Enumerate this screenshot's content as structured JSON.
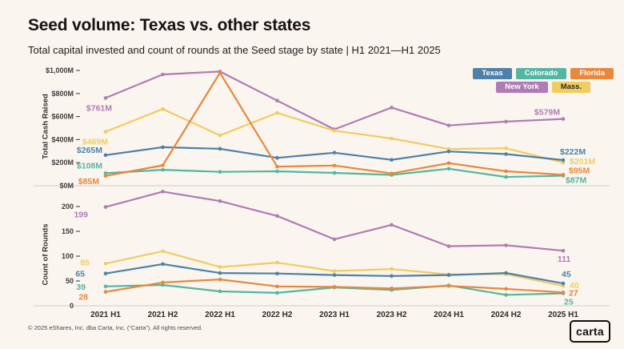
{
  "header": {
    "title": "Seed volume: Texas vs. other states",
    "subtitle": "Total capital invested and count of rounds at the Seed stage by state | H1 2021—H1 2025"
  },
  "legend": {
    "rows": [
      [
        {
          "label": "Texas",
          "color": "#4E80A8",
          "text_color": "#FFFFFF"
        },
        {
          "label": "Colorado",
          "color": "#53B6A2",
          "text_color": "#FFFFFF"
        },
        {
          "label": "Florida",
          "color": "#E8883C",
          "text_color": "#FFFFFF"
        }
      ],
      [
        {
          "label": "New York",
          "color": "#B07CB4",
          "text_color": "#FFFFFF"
        },
        {
          "label": "Mass.",
          "color": "#F1CD5F",
          "text_color": "#2A2A2A"
        }
      ]
    ]
  },
  "chart_data": [
    {
      "type": "line",
      "ylabel": "Total Cash Raised",
      "x": [
        "2021 H1",
        "2021 H2",
        "2022 H1",
        "2022 H2",
        "2023 H1",
        "2023 H2",
        "2024 H1",
        "2024 H2",
        "2025 H1"
      ],
      "ylim": [
        0,
        1000
      ],
      "grid": false,
      "legend_position": "top-right",
      "y_ticks": [
        {
          "value": 0,
          "label": "$0M"
        },
        {
          "value": 200,
          "label": "$200M"
        },
        {
          "value": 400,
          "label": "$400M"
        },
        {
          "value": 600,
          "label": "$600M"
        },
        {
          "value": 800,
          "label": "$800M"
        },
        {
          "value": 1000,
          "label": "$1,000M"
        }
      ],
      "series": [
        {
          "name": "New York",
          "color": "#B07CB4",
          "values": [
            761,
            965,
            990,
            738,
            489,
            678,
            523,
            556,
            579
          ],
          "first_label": "$761M",
          "last_label": "$579M"
        },
        {
          "name": "Mass.",
          "color": "#F1CD5F",
          "values": [
            469,
            665,
            436,
            632,
            477,
            410,
            318,
            325,
            201
          ],
          "first_label": "$469M",
          "last_label": "$201M"
        },
        {
          "name": "Texas",
          "color": "#4E80A8",
          "values": [
            265,
            334,
            320,
            242,
            286,
            224,
            297,
            274,
            222
          ],
          "first_label": "$265M",
          "last_label": "$222M"
        },
        {
          "name": "Colorado",
          "color": "#53B6A2",
          "values": [
            108,
            138,
            120,
            125,
            111,
            94,
            147,
            76,
            87
          ],
          "first_label": "$108M",
          "last_label": "$87M"
        },
        {
          "name": "Florida",
          "color": "#E8883C",
          "values": [
            85,
            177,
            980,
            165,
            175,
            106,
            196,
            125,
            95
          ],
          "first_label": "$85M",
          "last_label": "$95M"
        }
      ]
    },
    {
      "type": "line",
      "ylabel": "Count of Rounds",
      "x": [
        "2021 H1",
        "2021 H2",
        "2022 H1",
        "2022 H2",
        "2023 H1",
        "2023 H2",
        "2024 H1",
        "2024 H2",
        "2025 H1"
      ],
      "ylim": [
        0,
        240
      ],
      "grid": false,
      "y_ticks": [
        {
          "value": 0,
          "label": "0"
        },
        {
          "value": 50,
          "label": "50"
        },
        {
          "value": 100,
          "label": "100"
        },
        {
          "value": 150,
          "label": "150"
        },
        {
          "value": 200,
          "label": "200"
        }
      ],
      "series": [
        {
          "name": "New York",
          "color": "#B07CB4",
          "values": [
            199,
            230,
            211,
            181,
            134,
            163,
            120,
            122,
            111
          ],
          "first_label": "199",
          "last_label": "111"
        },
        {
          "name": "Mass.",
          "color": "#F1CD5F",
          "values": [
            85,
            110,
            78,
            87,
            70,
            74,
            63,
            64,
            40
          ],
          "first_label": "85",
          "last_label": "40"
        },
        {
          "name": "Texas",
          "color": "#4E80A8",
          "values": [
            65,
            84,
            66,
            65,
            62,
            60,
            62,
            66,
            45
          ],
          "first_label": "65",
          "last_label": "45"
        },
        {
          "name": "Colorado",
          "color": "#53B6A2",
          "values": [
            39,
            42,
            29,
            26,
            37,
            32,
            41,
            22,
            25
          ],
          "first_label": "39",
          "last_label": "25"
        },
        {
          "name": "Florida",
          "color": "#E8883C",
          "values": [
            28,
            47,
            53,
            39,
            38,
            35,
            40,
            34,
            27
          ],
          "first_label": "28",
          "last_label": "27"
        }
      ]
    }
  ],
  "footer": {
    "copyright": "© 2025 eShares, Inc. dba Carta, Inc. (“Carta”). All rights reserved.",
    "logo_text": "carta"
  },
  "colors": {
    "background": "#FAF5EE",
    "baseline": "#DBD6CD",
    "tick_text": "#3E3E3E",
    "x_label": "#2B2B2B"
  }
}
